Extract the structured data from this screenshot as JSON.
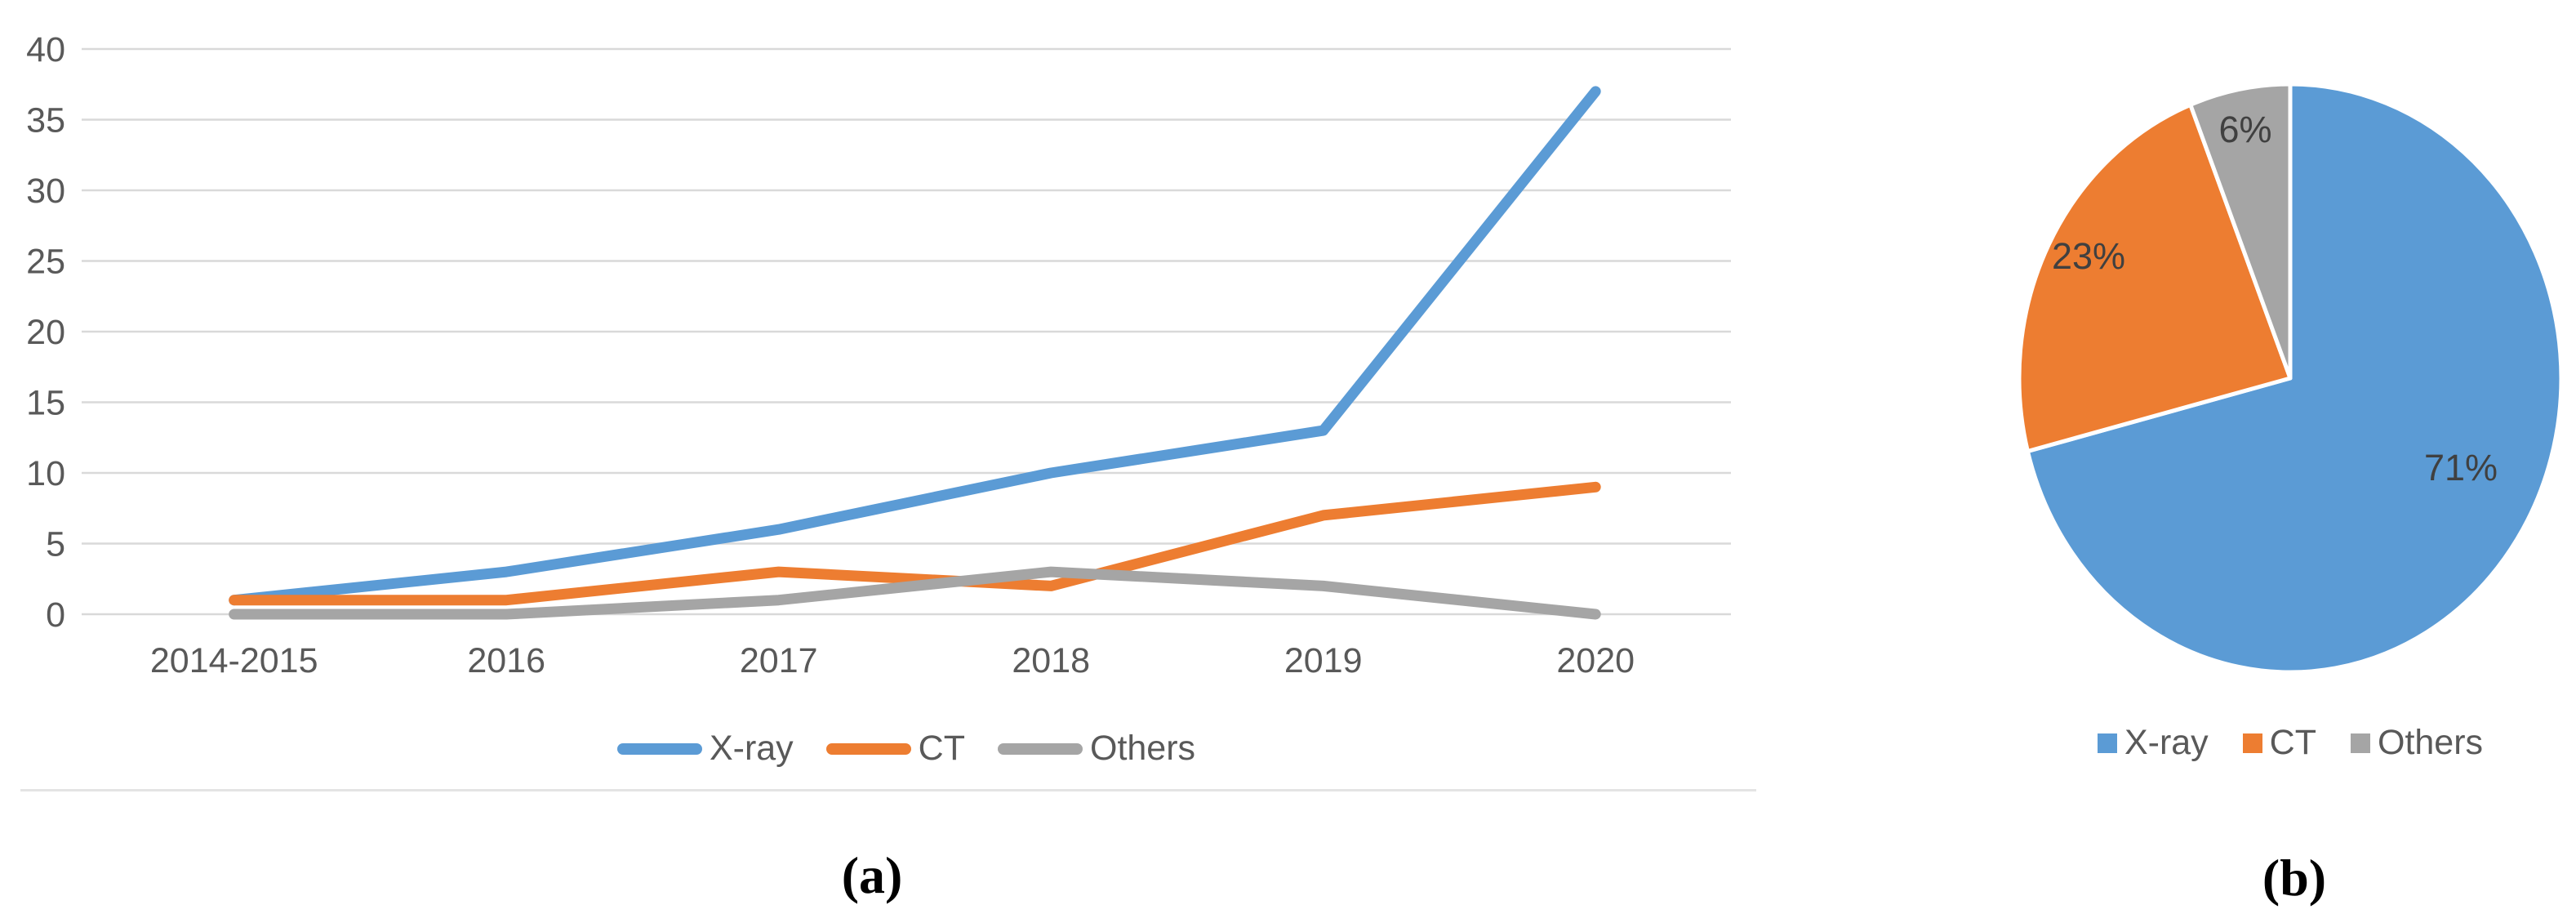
{
  "figure": {
    "captions": {
      "a": "(a)",
      "b": "(b)"
    }
  },
  "colors": {
    "xray": "#5B9BD5",
    "ct": "#ED7D31",
    "others": "#A5A5A5",
    "gridline": "#D9D9D9",
    "axis_text": "#595959",
    "pie_label_text": "#404040"
  },
  "chart_data": [
    {
      "type": "line",
      "panel": "a",
      "title": "",
      "categories": [
        "2014-2015",
        "2016",
        "2017",
        "2018",
        "2019",
        "2020"
      ],
      "series": [
        {
          "name": "X-ray",
          "color": "#5B9BD5",
          "values": [
            1,
            3,
            6,
            10,
            13,
            37
          ]
        },
        {
          "name": "CT",
          "color": "#ED7D31",
          "values": [
            1,
            1,
            3,
            2,
            7,
            9
          ]
        },
        {
          "name": "Others",
          "color": "#A5A5A5",
          "values": [
            0,
            0,
            1,
            3,
            2,
            0
          ]
        }
      ],
      "xlabel": "",
      "ylabel": "",
      "ylim": [
        0,
        40
      ],
      "yticks": [
        0,
        5,
        10,
        15,
        20,
        25,
        30,
        35,
        40
      ],
      "grid": "horizontal",
      "legend_position": "bottom"
    },
    {
      "type": "pie",
      "panel": "b",
      "title": "",
      "labels": [
        "X-ray",
        "CT",
        "Others"
      ],
      "values": [
        71,
        23,
        6
      ],
      "percent_labels": [
        "71%",
        "23%",
        "6%"
      ],
      "colors": [
        "#5B9BD5",
        "#ED7D31",
        "#A5A5A5"
      ],
      "start_angle_deg": 0,
      "direction": "clockwise",
      "slice_border_color": "#FFFFFF",
      "legend_position": "bottom"
    }
  ]
}
